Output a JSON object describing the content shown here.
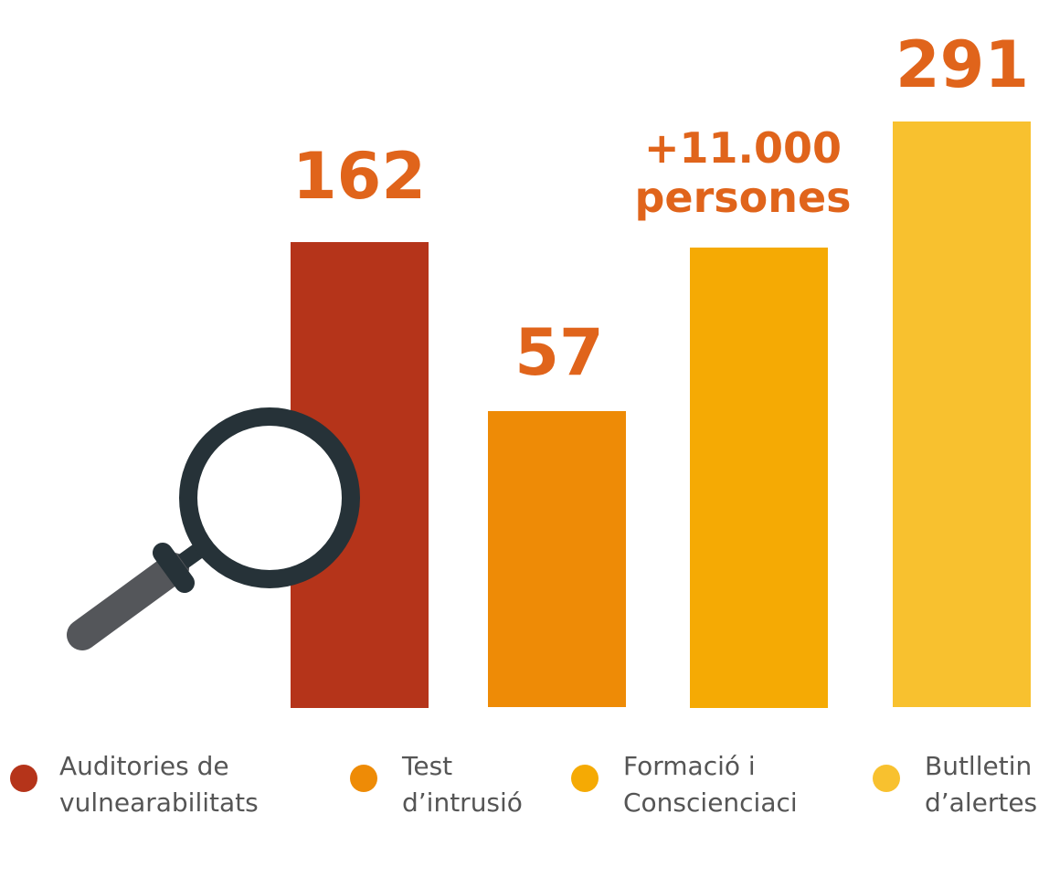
{
  "items": [
    {
      "value_text": [
        "162"
      ],
      "legend": [
        "Auditories de",
        "vulnearabilitats"
      ],
      "color": "#b5341a"
    },
    {
      "value_text": [
        "57"
      ],
      "legend": [
        "Test",
        "d’intrusió"
      ],
      "color": "#ee8b06"
    },
    {
      "value_text": [
        "+11.000",
        "persones"
      ],
      "legend": [
        "Formació i",
        "Conscienciaci"
      ],
      "color": "#f5aa04"
    },
    {
      "value_text": [
        "291"
      ],
      "legend": [
        "Butlletin",
        "d’alertes"
      ],
      "color": "#f8c12f"
    }
  ]
}
